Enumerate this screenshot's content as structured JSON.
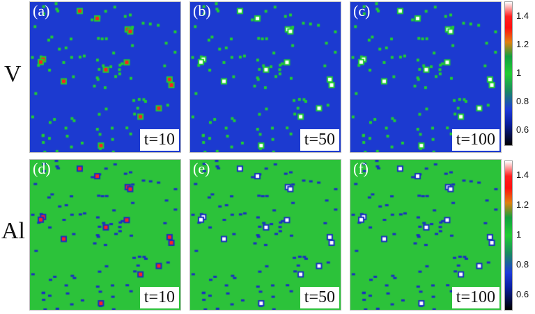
{
  "rows": [
    {
      "label": "V",
      "panels": [
        {
          "id": "(a)",
          "time": "t=10"
        },
        {
          "id": "(b)",
          "time": "t=50"
        },
        {
          "id": "(c)",
          "time": "t=100"
        }
      ]
    },
    {
      "label": "Al",
      "panels": [
        {
          "id": "(d)",
          "time": "t=10"
        },
        {
          "id": "(e)",
          "time": "t=50"
        },
        {
          "id": "(f)",
          "time": "t=100"
        }
      ]
    }
  ],
  "colorbar": {
    "ticks": [
      "1.4",
      "1.2",
      "1",
      "0.8",
      "0.6"
    ],
    "range": [
      0.5,
      1.5
    ]
  },
  "chart_data": {
    "type": "heatmap",
    "title": "",
    "xlabel": "",
    "ylabel": "",
    "colorbar_ticks": [
      1.4,
      1.2,
      1.0,
      0.8,
      0.6
    ],
    "zlim": [
      0.5,
      1.5
    ],
    "background_value": {
      "V": 0.75,
      "Al": 1.0
    },
    "colors": {
      "low": "#000000",
      "mid_low": "#1e3ad8",
      "mid": "#22cc33",
      "high": "#ff1010",
      "max": "#ffffff"
    }
  }
}
